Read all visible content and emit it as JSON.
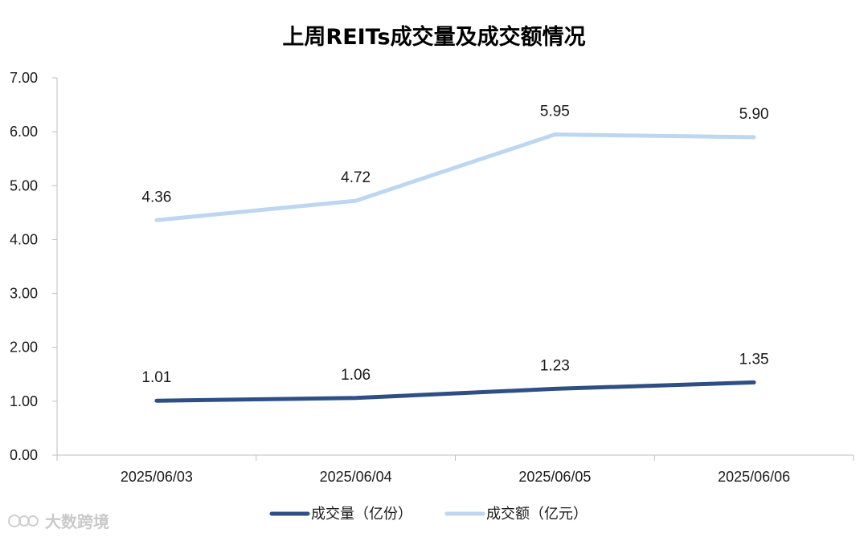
{
  "chart_data": {
    "type": "line",
    "title": "上周REITs成交量及成交额情况",
    "categories": [
      "2025/06/03",
      "2025/06/04",
      "2025/06/05",
      "2025/06/06"
    ],
    "ylim": [
      0,
      7
    ],
    "yticks": [
      "0.00",
      "1.00",
      "2.00",
      "3.00",
      "4.00",
      "5.00",
      "6.00",
      "7.00"
    ],
    "grid": false,
    "legend_position": "bottom",
    "series": [
      {
        "name": "成交量（亿份）",
        "values": [
          1.01,
          1.06,
          1.23,
          1.35
        ],
        "labels": [
          "1.01",
          "1.06",
          "1.23",
          "1.35"
        ],
        "color": "#2e4f86"
      },
      {
        "name": "成交额（亿元）",
        "values": [
          4.36,
          4.72,
          5.95,
          5.9
        ],
        "labels": [
          "4.36",
          "4.72",
          "5.95",
          "5.90"
        ],
        "color": "#bdd7f2"
      }
    ]
  },
  "watermark": {
    "text": "大数跨境",
    "icon": "brand-logo-icon"
  }
}
